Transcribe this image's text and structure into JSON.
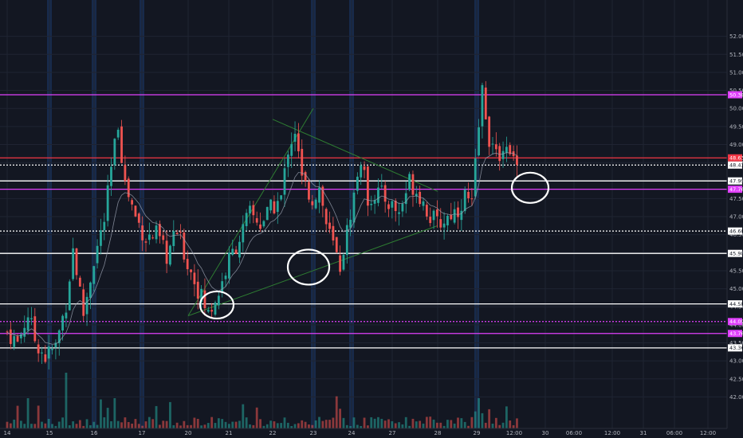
{
  "colors": {
    "background": "#131722",
    "grid": "#1f2432",
    "session_band": "#1c3a6e",
    "candle_up": "#26a69a",
    "candle_down": "#ef5350",
    "vwap": "#9aa0b0",
    "trendline": "#2e7d32",
    "magenta": "#e040fb",
    "white": "#ffffff",
    "price_red": "#f23645",
    "axis_text": "#b2b5be"
  },
  "chart_data": {
    "type": "candlestick",
    "title": "",
    "xlabel": "",
    "ylabel": "",
    "ylim": [
      41.7,
      52.5
    ],
    "grid": true,
    "y_ticks": [
      {
        "value": 52.0,
        "label": "52.00"
      },
      {
        "value": 51.5,
        "label": "51.50"
      },
      {
        "value": 51.0,
        "label": "51.00"
      },
      {
        "value": 50.5,
        "label": "50.50"
      },
      {
        "value": 50.0,
        "label": "50.00"
      },
      {
        "value": 49.5,
        "label": "49.50"
      },
      {
        "value": 49.0,
        "label": "49.00"
      },
      {
        "value": 48.5,
        "label": "48.50"
      },
      {
        "value": 48.0,
        "label": "48.00"
      },
      {
        "value": 47.5,
        "label": "47.50"
      },
      {
        "value": 47.0,
        "label": "47.00"
      },
      {
        "value": 46.5,
        "label": "46.50"
      },
      {
        "value": 46.0,
        "label": "46.00"
      },
      {
        "value": 45.5,
        "label": "45.50"
      },
      {
        "value": 45.0,
        "label": "45.00"
      },
      {
        "value": 44.5,
        "label": "44.50"
      },
      {
        "value": 44.0,
        "label": "44.00"
      },
      {
        "value": 43.5,
        "label": "43.50"
      },
      {
        "value": 43.0,
        "label": "43.00"
      },
      {
        "value": 42.5,
        "label": "42.50"
      },
      {
        "value": 42.0,
        "label": "42.00"
      }
    ],
    "x_ticks": [
      "14",
      "15",
      "16",
      "17",
      "20",
      "21",
      "22",
      "23",
      "24",
      "27",
      "28",
      "29",
      "12:00",
      "30",
      "06:00",
      "12:00",
      "31",
      "06:00",
      "12:00"
    ],
    "session_band_days": [
      "15",
      "16",
      "17",
      "23",
      "24",
      "29"
    ],
    "levels": [
      {
        "price": 50.38,
        "label": "50.38",
        "style": "solid",
        "color": "magenta"
      },
      {
        "price": 48.63,
        "label": "48.63",
        "style": "solid",
        "color": "price_red"
      },
      {
        "price": 48.43,
        "label": "48.43",
        "style": "dotted",
        "color": "white"
      },
      {
        "price": 47.99,
        "label": "47.99",
        "style": "solid",
        "color": "white"
      },
      {
        "price": 47.76,
        "label": "47.76",
        "style": "solid",
        "color": "magenta"
      },
      {
        "price": 46.6,
        "label": "46.60",
        "style": "dotted",
        "color": "white"
      },
      {
        "price": 45.98,
        "label": "45.98",
        "style": "solid",
        "color": "white"
      },
      {
        "price": 44.58,
        "label": "44.58",
        "style": "solid",
        "color": "white"
      },
      {
        "price": 44.09,
        "label": "44.09",
        "style": "dotted",
        "color": "magenta"
      },
      {
        "price": 43.76,
        "label": "43.76",
        "style": "solid",
        "color": "magenta"
      },
      {
        "price": 43.36,
        "label": "43.36",
        "style": "solid",
        "color": "white"
      }
    ],
    "trendlines": [
      {
        "from": {
          "x": "20",
          "price": 44.25
        },
        "to": {
          "x": "28",
          "price": 46.75
        }
      },
      {
        "from": {
          "x": "20",
          "price": 44.25
        },
        "to": {
          "x": "23",
          "price": 50.0
        }
      },
      {
        "from": {
          "x": "22",
          "price": 49.7
        },
        "to": {
          "x": "28",
          "price": 47.7
        }
      }
    ],
    "annotations": [
      {
        "type": "circle",
        "x": "20",
        "price": 44.55
      },
      {
        "type": "circle",
        "x": "23",
        "price": 45.6
      },
      {
        "type": "circle",
        "x": "29",
        "price": 47.8
      }
    ],
    "price_keypoints": [
      [
        0,
        43.8
      ],
      [
        3,
        43.5
      ],
      [
        6,
        44.3
      ],
      [
        8,
        43.6
      ],
      [
        11,
        43.1
      ],
      [
        14,
        43.4
      ],
      [
        17,
        44.6
      ],
      [
        19,
        46.1
      ],
      [
        22,
        44.3
      ],
      [
        25,
        45.8
      ],
      [
        28,
        46.9
      ],
      [
        30,
        48.3
      ],
      [
        32,
        49.6
      ],
      [
        34,
        47.9
      ],
      [
        37,
        47.0
      ],
      [
        40,
        46.4
      ],
      [
        43,
        46.5
      ],
      [
        46,
        45.9
      ],
      [
        49,
        46.6
      ],
      [
        52,
        45.7
      ],
      [
        55,
        45.0
      ],
      [
        58,
        44.3
      ],
      [
        61,
        44.9
      ],
      [
        64,
        45.8
      ],
      [
        67,
        46.4
      ],
      [
        70,
        47.1
      ],
      [
        73,
        46.8
      ],
      [
        76,
        47.2
      ],
      [
        79,
        47.5
      ],
      [
        81,
        48.9
      ],
      [
        83,
        49.4
      ],
      [
        85,
        48.0
      ],
      [
        88,
        47.5
      ],
      [
        90,
        47.8
      ],
      [
        92,
        46.8
      ],
      [
        94,
        46.2
      ],
      [
        96,
        45.6
      ],
      [
        98,
        46.6
      ],
      [
        100,
        47.6
      ],
      [
        102,
        48.6
      ],
      [
        104,
        47.5
      ],
      [
        107,
        47.7
      ],
      [
        110,
        47.4
      ],
      [
        113,
        47.1
      ],
      [
        116,
        48.0
      ],
      [
        119,
        47.6
      ],
      [
        122,
        47.0
      ],
      [
        124,
        46.8
      ],
      [
        126,
        46.9
      ],
      [
        128,
        47.1
      ],
      [
        130,
        47.2
      ],
      [
        132,
        47.6
      ],
      [
        134,
        47.3
      ],
      [
        136,
        49.5
      ],
      [
        137,
        50.5
      ],
      [
        139,
        49.2
      ],
      [
        141,
        48.6
      ],
      [
        143,
        49.0
      ],
      [
        145,
        48.6
      ],
      [
        147,
        48.7
      ]
    ],
    "candle_count": 148
  }
}
